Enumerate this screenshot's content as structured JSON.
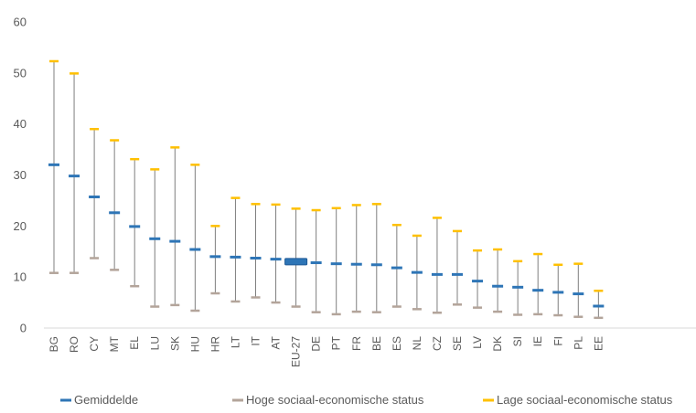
{
  "chart_data": {
    "type": "error-bar",
    "categories": [
      "BG",
      "RO",
      "CY",
      "MT",
      "EL",
      "LU",
      "SK",
      "HU",
      "HR",
      "LT",
      "IT",
      "AT",
      "EU-27",
      "DE",
      "PT",
      "FR",
      "BE",
      "ES",
      "NL",
      "CZ",
      "SE",
      "LV",
      "DK",
      "SI",
      "IE",
      "FI",
      "PL",
      "EE"
    ],
    "series": [
      {
        "name": "Gemiddelde",
        "color": "#2E75B6",
        "values": [
          32.0,
          29.8,
          25.7,
          22.6,
          19.9,
          17.5,
          17.0,
          15.4,
          14.0,
          13.9,
          13.7,
          13.5,
          13.0,
          12.8,
          12.6,
          12.5,
          12.4,
          11.8,
          10.9,
          10.5,
          10.5,
          9.2,
          8.2,
          8.0,
          7.4,
          7.0,
          6.7,
          4.3
        ]
      },
      {
        "name": "Hoge sociaal-economische status",
        "color": "#B3A49A",
        "values": [
          10.8,
          10.8,
          13.7,
          11.4,
          8.2,
          4.2,
          4.5,
          3.4,
          6.8,
          5.2,
          6.0,
          5.0,
          4.2,
          3.1,
          2.7,
          3.2,
          3.1,
          4.2,
          3.7,
          3.0,
          4.6,
          4.0,
          3.2,
          2.6,
          2.7,
          2.5,
          2.2,
          2.0
        ]
      },
      {
        "name": "Lage sociaal-economische status",
        "color": "#FFC000",
        "values": [
          52.3,
          49.9,
          39.0,
          36.8,
          33.1,
          31.1,
          35.4,
          32.0,
          20.0,
          25.5,
          24.3,
          24.2,
          23.4,
          23.1,
          23.5,
          24.1,
          24.3,
          20.2,
          18.1,
          21.6,
          19.0,
          15.2,
          15.4,
          13.1,
          14.5,
          12.4,
          12.6,
          7.3
        ]
      }
    ],
    "y_ticks": [
      "0",
      "10",
      "20",
      "30",
      "40",
      "50",
      "60"
    ],
    "ylim": [
      0,
      60
    ],
    "highlight_category": "EU-27",
    "grid": false,
    "legend_position": "bottom"
  }
}
